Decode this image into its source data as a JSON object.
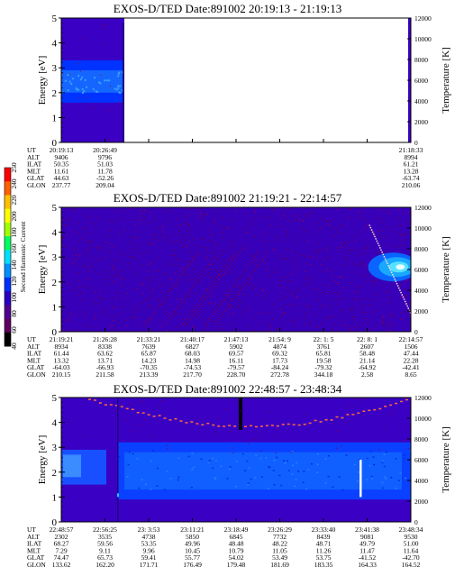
{
  "panels": [
    {
      "title": "EXOS-D/TED   Date:891002  20:19:13 - 21:19:13",
      "y_label": "Energy [eV]",
      "t_label": "Temperature [K]",
      "y_ticks": [
        "0",
        "1",
        "2",
        "3",
        "4",
        "5"
      ],
      "t_ticks": [
        "0",
        "2000",
        "4000",
        "6000",
        "8000",
        "10000",
        "12000"
      ],
      "row_labels": [
        "UT",
        "ALT",
        "ILAT",
        "MLT",
        "GLAT",
        "GLON"
      ],
      "columns": [
        [
          "20:19:13",
          "9406",
          "50.35",
          "11.61",
          "44.63",
          "237.77"
        ],
        [
          "20:26:49",
          "9796",
          "51.03",
          "11.78",
          "-52.26",
          "209.04"
        ],
        [
          "",
          "",
          "",
          "",
          "",
          ""
        ],
        [
          "",
          "",
          "",
          "",
          "",
          ""
        ],
        [
          "",
          "",
          "",
          "",
          "",
          ""
        ],
        [
          "",
          "",
          "",
          "",
          "",
          ""
        ],
        [
          "",
          "",
          "",
          "",
          "",
          ""
        ],
        [
          "",
          "",
          "",
          "",
          "",
          ""
        ],
        [
          "21:18:33",
          "8994",
          "61.21",
          "13.28",
          "-63.74",
          "210.06"
        ]
      ]
    },
    {
      "title": "EXOS-D/TED   Date:891002  21:19:21 - 22:14:57",
      "y_label": "Energy [eV]",
      "t_label": "Temperature [K]",
      "y_ticks": [
        "0",
        "1",
        "2",
        "3",
        "4",
        "5"
      ],
      "t_ticks": [
        "0",
        "2000",
        "4000",
        "6000",
        "8000",
        "10000",
        "12000"
      ],
      "row_labels": [
        "UT",
        "ALT",
        "ILAT",
        "MLT",
        "GLAT",
        "GLON"
      ],
      "columns": [
        [
          "21:19:21",
          "8934",
          "61.44",
          "13.32",
          "-64.03",
          "210.15"
        ],
        [
          "21:26:28",
          "8338",
          "63.62",
          "13.71",
          "-66.93",
          "211.58"
        ],
        [
          "21:33:21",
          "7639",
          "65.87",
          "14.23",
          "-70.35",
          "213.39"
        ],
        [
          "21:40:17",
          "6827",
          "68.03",
          "14.98",
          "-74.53",
          "217.70"
        ],
        [
          "21:47:13",
          "5902",
          "69.57",
          "16.11",
          "-79.57",
          "228.70"
        ],
        [
          "21:54: 9",
          "4874",
          "69.32",
          "17.73",
          "-84.24",
          "272.78"
        ],
        [
          "22: 1: 5",
          "3761",
          "65.81",
          "19.58",
          "-79.32",
          "344.18"
        ],
        [
          "22: 8: 1",
          "2607",
          "58.48",
          "21.14",
          "-64.92",
          "2.58"
        ],
        [
          "22:14:57",
          "1506",
          "47.44",
          "22.28",
          "-42.41",
          "8.65"
        ]
      ]
    },
    {
      "title": "EXOS-D/TED   Date:891002  22:48:57 - 23:48:34",
      "y_label": "Energy [eV]",
      "t_label": "Temperature [K]",
      "y_ticks": [
        "0",
        "1",
        "2",
        "3",
        "4",
        "5"
      ],
      "t_ticks": [
        "0",
        "2000",
        "4000",
        "6000",
        "8000",
        "10000",
        "12000"
      ],
      "row_labels": [
        "UT",
        "ALT",
        "ILAT",
        "MLT",
        "GLAT",
        "GLON"
      ],
      "columns": [
        [
          "22:48:57",
          "2302",
          "68.27",
          "7.29",
          "74.47",
          "133.62"
        ],
        [
          "22:56:25",
          "3535",
          "59.56",
          "9.11",
          "65.73",
          "162.20"
        ],
        [
          "23: 3:53",
          "4738",
          "53.35",
          "9.96",
          "59.41",
          "171.71"
        ],
        [
          "23:11:21",
          "5850",
          "49.96",
          "10.45",
          "55.77",
          "176.49"
        ],
        [
          "23:18:49",
          "6845",
          "48.48",
          "10.79",
          "54.02",
          "179.48"
        ],
        [
          "23:26:29",
          "7732",
          "48.22",
          "11.05",
          "53.49",
          "181.69"
        ],
        [
          "23:33:40",
          "8439",
          "48.71",
          "11.26",
          "53.75",
          "183.35"
        ],
        [
          "23:41:38",
          "9081",
          "49.79",
          "11.47",
          "-41.52",
          "164.33"
        ],
        [
          "23:48:34",
          "9530",
          "51.00",
          "11.64",
          "-42.70",
          "164.52"
        ]
      ]
    }
  ],
  "colorbar": {
    "label": "Second Harmonic Current",
    "ticks": [
      "40",
      "60",
      "80",
      "100",
      "120",
      "140",
      "160",
      "180",
      "200",
      "220",
      "240",
      "250"
    ]
  },
  "chart_data": {
    "type": "heatmap",
    "description_units": "energy spectrogram vs UT with electron temperature",
    "x": "UT",
    "y_range": [
      0,
      5
    ],
    "temperature_range": [
      0,
      12000
    ],
    "colorbar_range": [
      40,
      250
    ]
  }
}
